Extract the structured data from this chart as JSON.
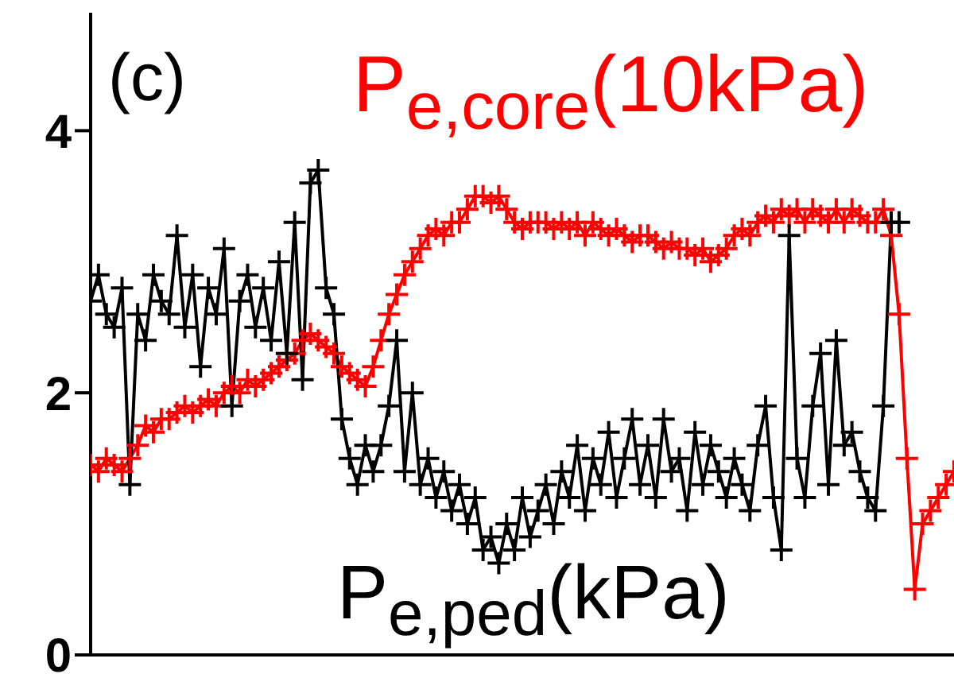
{
  "chart_data": {
    "type": "line",
    "categories": [
      null,
      null,
      null,
      null,
      null,
      null,
      null,
      null,
      null,
      null,
      null,
      null,
      null,
      null,
      null,
      null,
      null,
      null,
      null,
      null,
      null,
      null,
      null,
      null,
      null,
      null,
      null,
      null,
      null,
      null,
      null,
      null,
      null,
      null,
      null,
      null,
      null,
      null,
      null,
      null,
      null,
      null,
      null,
      null,
      null,
      null,
      null,
      null,
      null,
      null,
      null,
      null,
      null,
      null,
      null,
      null,
      null,
      null,
      null,
      null,
      null,
      null,
      null,
      null,
      null,
      null,
      null,
      null,
      null,
      null,
      null,
      null,
      null,
      null,
      null,
      null,
      null,
      null,
      null,
      null,
      null,
      null,
      null,
      null,
      null,
      null,
      null,
      null,
      null,
      null,
      null,
      null,
      null,
      null,
      null,
      null,
      null,
      null,
      null,
      null,
      null,
      null,
      null,
      null,
      null,
      null,
      null,
      null,
      null,
      null,
      null
    ],
    "series": [
      {
        "name": "P$_{e,core}$(10kPa)",
        "color": "#ff0000",
        "values": [
          1.45,
          1.4,
          1.5,
          1.45,
          1.4,
          1.5,
          1.6,
          1.75,
          1.7,
          1.8,
          1.8,
          1.85,
          1.9,
          1.85,
          1.9,
          1.95,
          1.9,
          2.0,
          2.05,
          2.0,
          2.1,
          2.05,
          2.1,
          2.15,
          2.2,
          2.25,
          2.3,
          2.4,
          2.45,
          2.4,
          2.35,
          2.3,
          2.2,
          2.15,
          2.1,
          2.05,
          2.2,
          2.4,
          2.6,
          2.75,
          2.9,
          3.0,
          3.1,
          3.2,
          3.25,
          3.2,
          3.3,
          3.3,
          3.4,
          3.5,
          3.5,
          3.45,
          3.5,
          3.4,
          3.3,
          3.25,
          3.3,
          3.3,
          3.3,
          3.25,
          3.3,
          3.25,
          3.3,
          3.2,
          3.3,
          3.25,
          3.2,
          3.25,
          3.2,
          3.15,
          3.2,
          3.2,
          3.15,
          3.1,
          3.15,
          3.1,
          3.1,
          3.05,
          3.1,
          3.0,
          3.05,
          3.1,
          3.2,
          3.25,
          3.2,
          3.3,
          3.35,
          3.3,
          3.4,
          3.35,
          3.4,
          3.3,
          3.4,
          3.35,
          3.3,
          3.4,
          3.3,
          3.4,
          3.35,
          3.3,
          3.3,
          3.4,
          3.2,
          2.6,
          1.5,
          0.5,
          1.0,
          1.1,
          1.2,
          1.3,
          1.4
        ]
      },
      {
        "name": "P$_{e,ped}$(kPa)",
        "color": "#000000",
        "values": [
          2.7,
          2.9,
          2.6,
          2.5,
          2.8,
          1.3,
          2.6,
          2.4,
          2.9,
          2.7,
          2.6,
          3.2,
          2.5,
          2.9,
          2.2,
          2.8,
          2.6,
          3.1,
          1.9,
          2.7,
          2.9,
          2.5,
          2.8,
          2.4,
          3.0,
          2.3,
          3.3,
          2.1,
          3.6,
          3.7,
          2.8,
          2.6,
          1.8,
          1.5,
          1.3,
          1.6,
          1.4,
          1.6,
          1.9,
          2.4,
          1.4,
          2.0,
          1.3,
          1.5,
          1.2,
          1.4,
          1.1,
          1.3,
          1.0,
          1.2,
          0.8,
          0.9,
          0.7,
          1.0,
          0.8,
          1.2,
          0.9,
          1.1,
          1.3,
          1.0,
          1.4,
          1.2,
          1.6,
          1.1,
          1.5,
          1.3,
          1.7,
          1.2,
          1.5,
          1.8,
          1.3,
          1.6,
          1.2,
          1.8,
          1.4,
          1.5,
          1.1,
          1.7,
          1.3,
          1.6,
          1.4,
          1.2,
          1.5,
          1.3,
          1.1,
          1.6,
          1.9,
          1.2,
          0.8,
          3.2,
          1.5,
          1.2,
          1.9,
          2.3,
          1.3,
          2.4,
          1.6,
          1.7,
          1.4,
          1.2,
          1.1,
          1.9,
          3.3,
          3.3,
          null,
          null,
          null,
          null,
          null,
          null,
          null
        ]
      }
    ],
    "ylim": [
      0,
      4.9
    ],
    "yticks": [
      0,
      2,
      4
    ],
    "tick_labels": "y",
    "marker": "cross",
    "line_style": "solid",
    "grid": false,
    "legend": false,
    "annotations": [
      "(c)"
    ]
  }
}
